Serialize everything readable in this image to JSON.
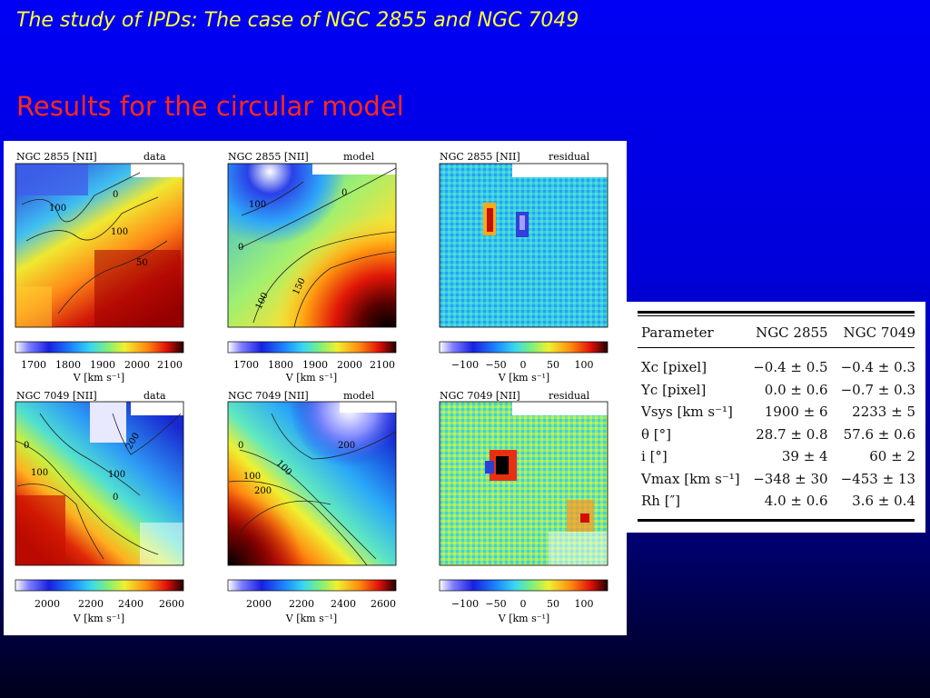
{
  "slide": {
    "title": "The study of IPDs: The case of NGC 2855 and NGC 7049",
    "subtitle": "Results for the circular model"
  },
  "figure": {
    "panel_titles": [
      {
        "galaxy": "NGC 2855 [NII]",
        "kind": "data"
      },
      {
        "galaxy": "NGC 2855 [NII]",
        "kind": "model"
      },
      {
        "galaxy": "NGC 2855 [NII]",
        "kind": "residual"
      },
      {
        "galaxy": "NGC 7049 [NII]",
        "kind": "data"
      },
      {
        "galaxy": "NGC 7049 [NII]",
        "kind": "model"
      },
      {
        "galaxy": "NGC 7049 [NII]",
        "kind": "residual"
      }
    ],
    "colorbars": [
      {
        "ticks": [
          "1700",
          "1800",
          "1900",
          "2000",
          "2100"
        ],
        "label": "V [km s⁻¹]"
      },
      {
        "ticks": [
          "1700",
          "1800",
          "1900",
          "2000",
          "2100"
        ],
        "label": "V [km s⁻¹]"
      },
      {
        "ticks": [
          "−100",
          "−50",
          "0",
          "50",
          "100"
        ],
        "label": "V [km s⁻¹]"
      },
      {
        "ticks": [
          "2000",
          "2200",
          "2400",
          "2600"
        ],
        "label": "V [km s⁻¹]"
      },
      {
        "ticks": [
          "2000",
          "2200",
          "2400",
          "2600"
        ],
        "label": "V [km s⁻¹]"
      },
      {
        "ticks": [
          "−100",
          "−50",
          "0",
          "50",
          "100"
        ],
        "label": "V [km s⁻¹]"
      }
    ],
    "contour_labels": [
      [
        "100",
        "0",
        "100",
        "50"
      ],
      [
        "100",
        "0",
        "0",
        "100",
        "150"
      ],
      [],
      [
        "0",
        "100",
        "100",
        "200",
        "0"
      ],
      [
        "0",
        "100",
        "100",
        "200",
        "200"
      ],
      []
    ],
    "colors": {
      "blue": "#2a3fd8",
      "cyan": "#35c8f0",
      "yellow": "#f5e830",
      "red": "#e02010",
      "darkred": "#5a0000"
    }
  },
  "table": {
    "headers": [
      "Parameter",
      "NGC 2855",
      "NGC 7049"
    ],
    "rows": [
      [
        "Xc [pixel]",
        "−0.4 ± 0.5",
        "−0.4 ± 0.3"
      ],
      [
        "Yc [pixel]",
        "0.0 ± 0.6",
        "−0.7 ± 0.3"
      ],
      [
        "Vsys [km s⁻¹]",
        "1900 ± 6",
        "2233 ± 5"
      ],
      [
        "θ [°]",
        "28.7 ± 0.8",
        "57.6 ± 0.6"
      ],
      [
        "i [°]",
        "39 ± 4",
        "60 ± 2"
      ],
      [
        "Vmax [km s⁻¹]",
        "−348 ± 30",
        "−453 ± 13"
      ],
      [
        "Rh [″]",
        "4.0 ± 0.6",
        "3.6 ± 0.4"
      ]
    ]
  }
}
